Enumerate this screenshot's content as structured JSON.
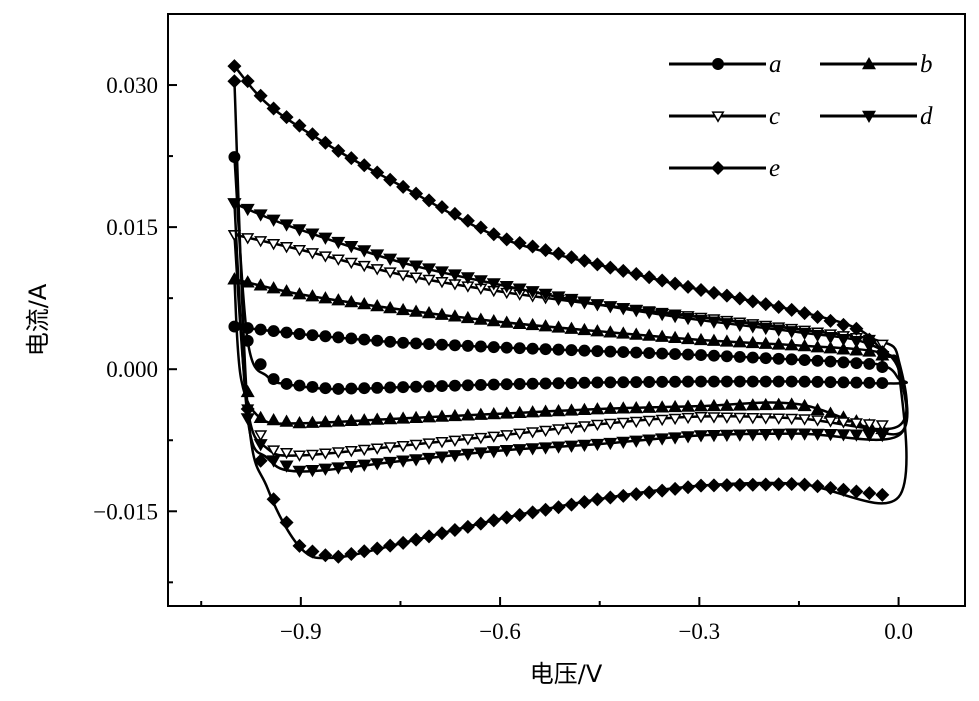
{
  "chart_data": {
    "type": "line",
    "title": "",
    "xlabel": "电压/V",
    "ylabel": "电流/A",
    "xlim": [
      -1.1,
      0.1
    ],
    "ylim": [
      -0.025,
      0.0375
    ],
    "xticks": [
      -0.9,
      -0.6,
      -0.3,
      0.0
    ],
    "xtick_labels": [
      "−0.9",
      "−0.6",
      "−0.3",
      "0.0"
    ],
    "yticks": [
      0.03,
      0.015,
      0.0,
      -0.015
    ],
    "ytick_labels": [
      "0.030",
      "0.015",
      "0.000",
      "−0.015"
    ],
    "xminor": [
      -1.05,
      -0.75,
      -0.45,
      -0.15
    ],
    "yminor": [
      0.0225,
      0.0075,
      -0.0075,
      -0.0225
    ],
    "grid": false,
    "legend_position": "top-right",
    "series": [
      {
        "name": "a",
        "marker": "circle",
        "upper": [
          [
            -1.0,
            0.0045
          ],
          [
            -0.9,
            0.0037
          ],
          [
            -0.75,
            0.0028
          ],
          [
            -0.6,
            0.0023
          ],
          [
            -0.45,
            0.0019
          ],
          [
            -0.3,
            0.0015
          ],
          [
            -0.15,
            0.001
          ],
          [
            -0.03,
            0.0005
          ],
          [
            0.0,
            -0.001
          ]
        ],
        "lower": [
          [
            0.0,
            -0.0015
          ],
          [
            -0.15,
            -0.0013
          ],
          [
            -0.3,
            -0.0013
          ],
          [
            -0.45,
            -0.0014
          ],
          [
            -0.6,
            -0.0016
          ],
          [
            -0.75,
            -0.0019
          ],
          [
            -0.85,
            -0.0021
          ],
          [
            -0.92,
            -0.0016
          ],
          [
            -0.95,
            -0.0008
          ],
          [
            -0.98,
            0.003
          ],
          [
            -1.0,
            0.0224
          ]
        ]
      },
      {
        "name": "b",
        "marker": "triangle-up",
        "upper": [
          [
            -1.0,
            0.0095
          ],
          [
            -0.9,
            0.0079
          ],
          [
            -0.75,
            0.0063
          ],
          [
            -0.6,
            0.005
          ],
          [
            -0.45,
            0.004
          ],
          [
            -0.3,
            0.0031
          ],
          [
            -0.15,
            0.0025
          ],
          [
            -0.03,
            0.0018
          ],
          [
            0.0,
            0.0
          ]
        ],
        "lower": [
          [
            0.0,
            -0.0068
          ],
          [
            -0.15,
            -0.0037
          ],
          [
            -0.3,
            -0.0039
          ],
          [
            -0.45,
            -0.0042
          ],
          [
            -0.6,
            -0.0047
          ],
          [
            -0.75,
            -0.0052
          ],
          [
            -0.9,
            -0.0057
          ],
          [
            -0.96,
            -0.0052
          ],
          [
            -0.99,
            -0.001
          ],
          [
            -1.0,
            0.0095
          ]
        ]
      },
      {
        "name": "c",
        "marker": "triangle-down-open",
        "upper": [
          [
            -1.0,
            0.0142
          ],
          [
            -0.9,
            0.0126
          ],
          [
            -0.75,
            0.01
          ],
          [
            -0.6,
            0.0082
          ],
          [
            -0.45,
            0.0068
          ],
          [
            -0.3,
            0.0055
          ],
          [
            -0.15,
            0.0042
          ],
          [
            -0.03,
            0.003
          ],
          [
            0.0,
            0.001
          ]
        ],
        "lower": [
          [
            0.0,
            -0.006
          ],
          [
            -0.15,
            -0.0052
          ],
          [
            -0.3,
            -0.005
          ],
          [
            -0.45,
            -0.0058
          ],
          [
            -0.6,
            -0.007
          ],
          [
            -0.75,
            -0.0081
          ],
          [
            -0.9,
            -0.0091
          ],
          [
            -0.95,
            -0.0084
          ],
          [
            -0.98,
            -0.0042
          ],
          [
            -1.0,
            0.0142
          ]
        ]
      },
      {
        "name": "d",
        "marker": "triangle-down",
        "upper": [
          [
            -1.0,
            0.0175
          ],
          [
            -0.95,
            0.016
          ],
          [
            -0.9,
            0.0147
          ],
          [
            -0.75,
            0.0113
          ],
          [
            -0.6,
            0.0089
          ],
          [
            -0.45,
            0.0068
          ],
          [
            -0.3,
            0.0052
          ],
          [
            -0.15,
            0.0039
          ],
          [
            -0.05,
            0.0028
          ],
          [
            0.0,
            0.0
          ]
        ],
        "lower": [
          [
            0.0,
            -0.007
          ],
          [
            -0.15,
            -0.0068
          ],
          [
            -0.3,
            -0.007
          ],
          [
            -0.45,
            -0.0079
          ],
          [
            -0.6,
            -0.0086
          ],
          [
            -0.75,
            -0.0097
          ],
          [
            -0.9,
            -0.0108
          ],
          [
            -0.95,
            -0.0094
          ],
          [
            -0.98,
            -0.0052
          ],
          [
            -1.0,
            0.0175
          ]
        ]
      },
      {
        "name": "e",
        "marker": "diamond",
        "upper": [
          [
            -1.0,
            0.032
          ],
          [
            -0.947,
            0.0278
          ],
          [
            -0.85,
            0.0233
          ],
          [
            -0.75,
            0.0194
          ],
          [
            -0.6,
            0.0139
          ],
          [
            -0.45,
            0.011
          ],
          [
            -0.3,
            0.0084
          ],
          [
            -0.15,
            0.0061
          ],
          [
            -0.06,
            0.0042
          ],
          [
            -0.02,
            0.0015
          ],
          [
            0.0,
            0.0
          ]
        ],
        "lower": [
          [
            0.0,
            -0.0135
          ],
          [
            -0.15,
            -0.0121
          ],
          [
            -0.3,
            -0.0123
          ],
          [
            -0.45,
            -0.0137
          ],
          [
            -0.6,
            -0.0158
          ],
          [
            -0.75,
            -0.0184
          ],
          [
            -0.85,
            -0.0199
          ],
          [
            -0.9,
            -0.0189
          ],
          [
            -0.95,
            -0.0126
          ],
          [
            -0.98,
            -0.0042
          ],
          [
            -1.0,
            0.0304
          ]
        ]
      }
    ]
  }
}
